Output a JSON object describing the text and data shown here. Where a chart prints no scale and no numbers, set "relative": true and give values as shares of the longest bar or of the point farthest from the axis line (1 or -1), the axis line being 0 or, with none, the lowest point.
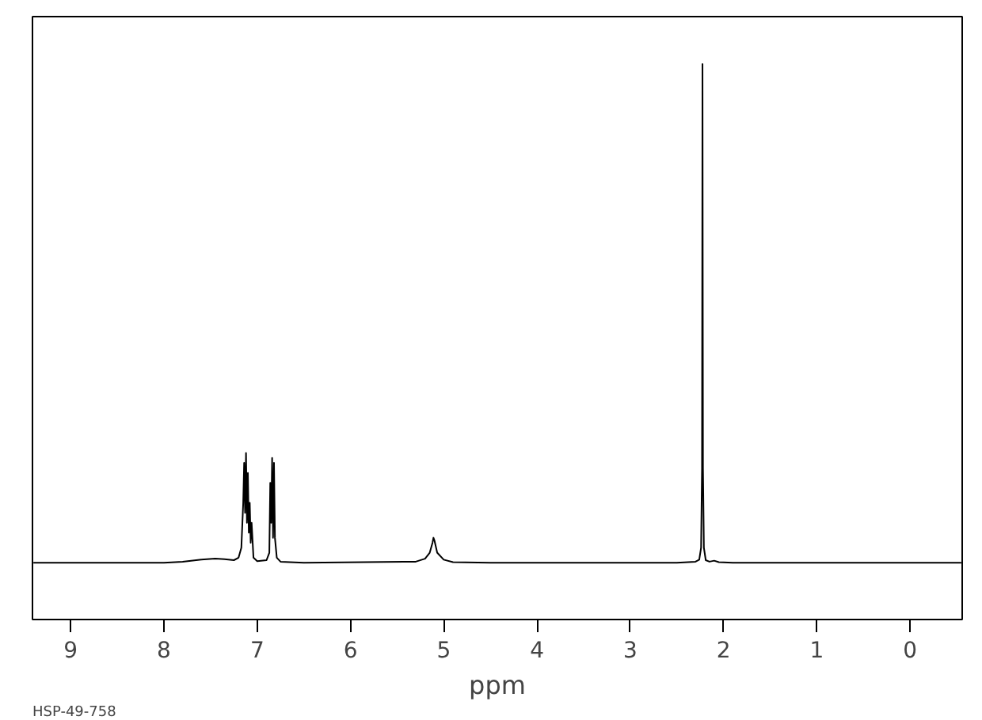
{
  "chart_data": {
    "type": "line",
    "relative": true,
    "xlabel": "ppm",
    "annotations": [
      "HSP-49-758"
    ],
    "xlim": [
      9.41,
      -0.56
    ],
    "xticks": [
      9,
      8,
      7,
      6,
      5,
      4,
      3,
      2,
      1,
      0
    ],
    "grid": false,
    "tick_labels": "x",
    "line_style": "solid",
    "series": [
      {
        "color": "#000000",
        "x": [
          9.4,
          8.0,
          7.8,
          7.6,
          7.45,
          7.35,
          7.25,
          7.2,
          7.17,
          7.15,
          7.14,
          7.13,
          7.12,
          7.11,
          7.1,
          7.09,
          7.08,
          7.07,
          7.06,
          7.04,
          7.0,
          6.9,
          6.87,
          6.86,
          6.85,
          6.84,
          6.83,
          6.82,
          6.81,
          6.79,
          6.75,
          6.5,
          5.3,
          5.2,
          5.15,
          5.12,
          5.11,
          5.1,
          5.07,
          5.0,
          4.9,
          4.5,
          2.5,
          2.3,
          2.26,
          2.24,
          2.23,
          2.225,
          2.22,
          2.21,
          2.19,
          2.15,
          2.1,
          2.05,
          1.9,
          -0.55
        ],
        "values": [
          0,
          0,
          0.002,
          0.006,
          0.008,
          0.007,
          0.005,
          0.01,
          0.03,
          0.12,
          0.2,
          0.1,
          0.22,
          0.08,
          0.18,
          0.06,
          0.12,
          0.04,
          0.08,
          0.01,
          0.003,
          0.005,
          0.02,
          0.16,
          0.08,
          0.21,
          0.05,
          0.2,
          0.05,
          0.01,
          0.002,
          0,
          0.002,
          0.008,
          0.02,
          0.04,
          0.05,
          0.045,
          0.02,
          0.006,
          0.001,
          0,
          0,
          0.002,
          0.006,
          0.03,
          0.19,
          1.0,
          0.19,
          0.03,
          0.005,
          0.002,
          0.004,
          0.001,
          0,
          0
        ]
      }
    ]
  }
}
